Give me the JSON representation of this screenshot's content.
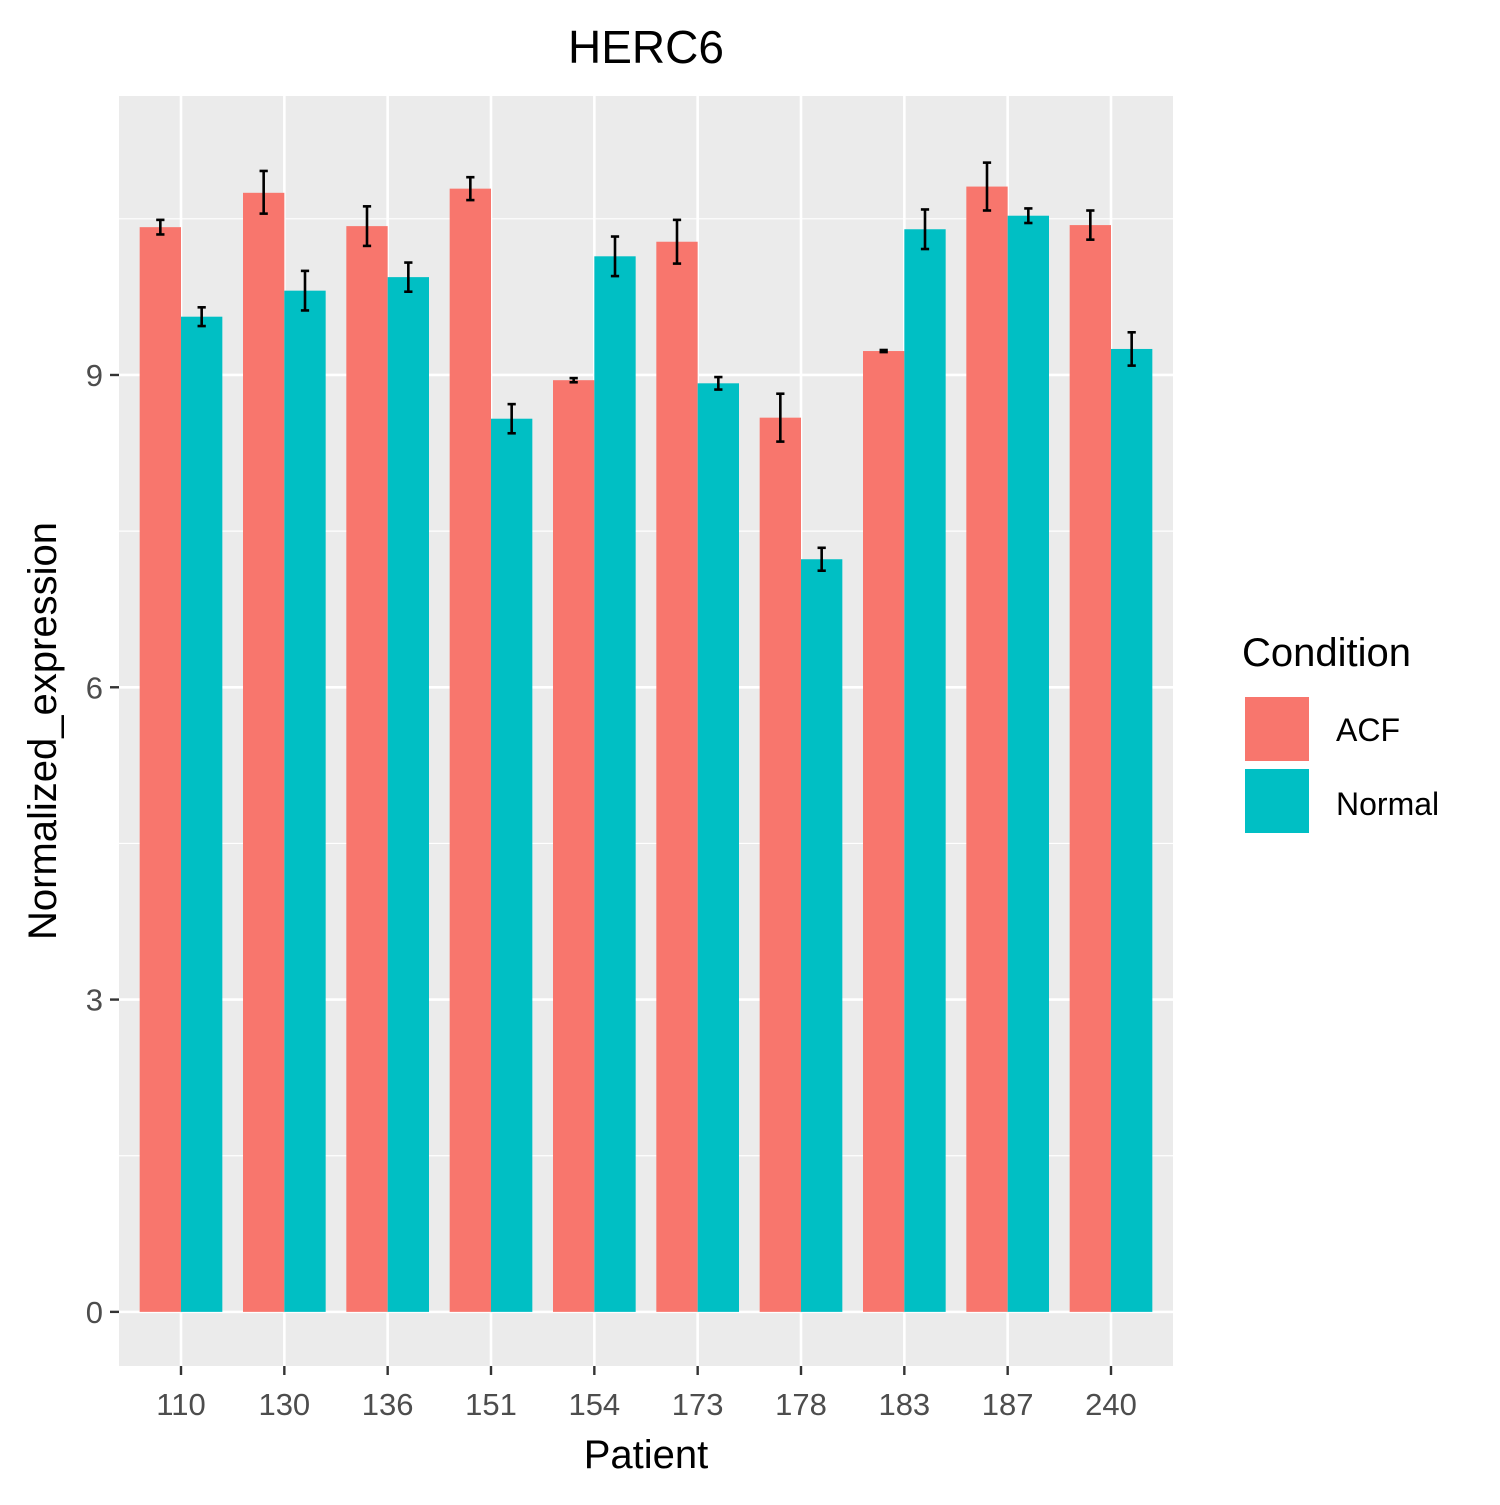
{
  "chart_data": {
    "type": "bar",
    "title": "HERC6",
    "xlabel": "Patient",
    "ylabel": "Normalized_expression",
    "categories": [
      "110",
      "130",
      "136",
      "151",
      "154",
      "173",
      "178",
      "183",
      "187",
      "240"
    ],
    "ylim": [
      -0.52,
      11.68
    ],
    "yticks": [
      0,
      3,
      6,
      9
    ],
    "grid": true,
    "series": [
      {
        "name": "ACF",
        "color": "#F8766D",
        "values": [
          10.42,
          10.75,
          10.43,
          10.79,
          8.95,
          10.28,
          8.59,
          9.23,
          10.81,
          10.44
        ],
        "err_low": [
          10.35,
          10.55,
          10.24,
          10.68,
          8.93,
          10.07,
          8.36,
          9.22,
          10.58,
          10.3
        ],
        "err_high": [
          10.49,
          10.96,
          10.62,
          10.9,
          8.97,
          10.49,
          8.82,
          9.24,
          11.04,
          10.58
        ]
      },
      {
        "name": "Normal",
        "color": "#00BFC4",
        "values": [
          9.56,
          9.81,
          9.94,
          8.58,
          10.14,
          8.92,
          7.23,
          10.4,
          10.53,
          9.25
        ],
        "err_low": [
          9.47,
          9.62,
          9.8,
          8.44,
          9.95,
          8.86,
          7.12,
          10.21,
          10.46,
          9.09
        ],
        "err_high": [
          9.65,
          10.0,
          10.08,
          8.72,
          10.33,
          8.98,
          7.34,
          10.59,
          10.6,
          9.41
        ]
      }
    ],
    "legend": {
      "title": "Condition",
      "position": "right",
      "entries": [
        "ACF",
        "Normal"
      ]
    }
  }
}
